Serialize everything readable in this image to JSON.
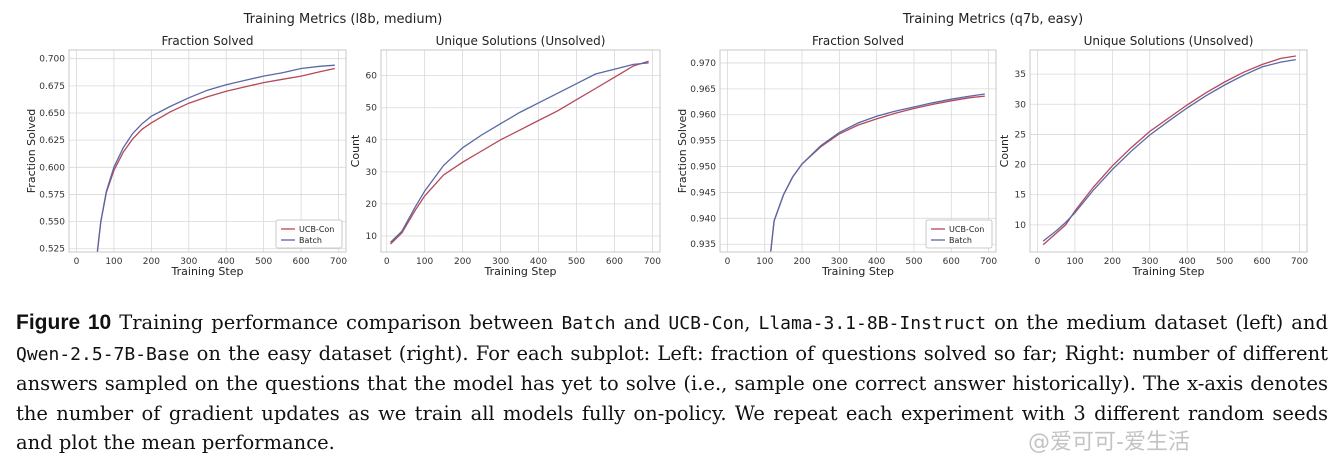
{
  "figure": {
    "suptitles": [
      "Training Metrics (l8b, medium)",
      "Training Metrics (q7b, easy)"
    ]
  },
  "chart_data": [
    {
      "type": "line",
      "title": "Fraction Solved",
      "xlabel": "Training Step",
      "ylabel": "Fraction Solved",
      "xlim": [
        -20,
        720
      ],
      "ylim": [
        0.522,
        0.708
      ],
      "xticks": [
        0,
        100,
        200,
        300,
        400,
        500,
        600,
        700
      ],
      "yticks": [
        0.525,
        0.55,
        0.575,
        0.6,
        0.625,
        0.65,
        0.675,
        0.7
      ],
      "ytick_labels": [
        "0.525",
        "0.550",
        "0.575",
        "0.600",
        "0.625",
        "0.650",
        "0.675",
        "0.700"
      ],
      "grid": true,
      "legend": "bottom-right",
      "x": [
        55,
        65,
        80,
        100,
        125,
        150,
        175,
        200,
        250,
        300,
        350,
        400,
        450,
        500,
        550,
        600,
        650,
        690
      ],
      "series": [
        {
          "name": "UCB-Con",
          "color": "#b5485a",
          "values": [
            0.52,
            0.55,
            0.577,
            0.597,
            0.614,
            0.626,
            0.635,
            0.641,
            0.651,
            0.659,
            0.665,
            0.67,
            0.674,
            0.678,
            0.681,
            0.684,
            0.688,
            0.691
          ]
        },
        {
          "name": "Batch",
          "color": "#5868a6",
          "values": [
            0.52,
            0.55,
            0.578,
            0.6,
            0.618,
            0.631,
            0.64,
            0.647,
            0.656,
            0.664,
            0.671,
            0.676,
            0.68,
            0.684,
            0.687,
            0.691,
            0.693,
            0.694
          ]
        }
      ]
    },
    {
      "type": "line",
      "title": "Unique Solutions (Unsolved)",
      "xlabel": "Training Step",
      "ylabel": "Count",
      "xlim": [
        -15,
        720
      ],
      "ylim": [
        5,
        68
      ],
      "xticks": [
        0,
        100,
        200,
        300,
        400,
        500,
        600,
        700
      ],
      "yticks": [
        10,
        20,
        30,
        40,
        50,
        60
      ],
      "ytick_labels": [
        "10",
        "20",
        "30",
        "40",
        "50",
        "60"
      ],
      "grid": true,
      "x": [
        10,
        40,
        75,
        100,
        150,
        200,
        250,
        300,
        350,
        400,
        450,
        500,
        550,
        600,
        650,
        690
      ],
      "series": [
        {
          "name": "UCB-Con",
          "color": "#b5485a",
          "values": [
            7.5,
            11,
            18,
            22.5,
            29,
            33,
            36.5,
            40,
            43,
            46,
            49,
            52.5,
            56,
            59.5,
            63,
            64.5
          ]
        },
        {
          "name": "Batch",
          "color": "#5868a6",
          "values": [
            8,
            11.5,
            19,
            24,
            32,
            37.5,
            41.5,
            45,
            48.5,
            51.5,
            54.5,
            57.5,
            60.5,
            62,
            63.5,
            64
          ]
        }
      ]
    },
    {
      "type": "line",
      "title": "Fraction Solved",
      "xlabel": "Training Step",
      "ylabel": "Fraction Solved",
      "xlim": [
        -20,
        720
      ],
      "ylim": [
        0.9335,
        0.9725
      ],
      "xticks": [
        0,
        100,
        200,
        300,
        400,
        500,
        600,
        700
      ],
      "yticks": [
        0.935,
        0.94,
        0.945,
        0.95,
        0.955,
        0.96,
        0.965,
        0.97
      ],
      "ytick_labels": [
        "0.935",
        "0.940",
        "0.945",
        "0.950",
        "0.955",
        "0.960",
        "0.965",
        "0.970"
      ],
      "grid": true,
      "legend": "bottom-right",
      "x": [
        115,
        125,
        150,
        175,
        200,
        250,
        300,
        350,
        400,
        450,
        500,
        550,
        600,
        650,
        690
      ],
      "series": [
        {
          "name": "UCB-Con",
          "color": "#b5485a",
          "values": [
            0.933,
            0.9395,
            0.9445,
            0.948,
            0.9505,
            0.9538,
            0.9563,
            0.958,
            0.9592,
            0.9603,
            0.9612,
            0.962,
            0.9627,
            0.9633,
            0.9636
          ]
        },
        {
          "name": "Batch",
          "color": "#5868a6",
          "values": [
            0.933,
            0.9395,
            0.9445,
            0.948,
            0.9505,
            0.954,
            0.9566,
            0.9584,
            0.9597,
            0.9607,
            0.9615,
            0.9623,
            0.963,
            0.9636,
            0.964
          ]
        }
      ]
    },
    {
      "type": "line",
      "title": "Unique Solutions (Unsolved)",
      "xlabel": "Training Step",
      "ylabel": "Count",
      "xlim": [
        -20,
        720
      ],
      "ylim": [
        5.5,
        39
      ],
      "xticks": [
        0,
        100,
        200,
        300,
        400,
        500,
        600,
        700
      ],
      "yticks": [
        10,
        15,
        20,
        25,
        30,
        35
      ],
      "ytick_labels": [
        "10",
        "15",
        "20",
        "25",
        "30",
        "35"
      ],
      "grid": true,
      "x": [
        15,
        50,
        75,
        100,
        150,
        200,
        250,
        300,
        350,
        400,
        450,
        500,
        550,
        600,
        650,
        690
      ],
      "series": [
        {
          "name": "UCB-Con",
          "color": "#b5485a",
          "values": [
            6.7,
            8.6,
            10,
            12.3,
            16.3,
            19.8,
            22.8,
            25.5,
            27.7,
            29.9,
            31.9,
            33.7,
            35.3,
            36.6,
            37.6,
            38
          ]
        },
        {
          "name": "Batch",
          "color": "#5868a6",
          "values": [
            7.3,
            9,
            10.4,
            12,
            15.8,
            19.2,
            22.2,
            24.9,
            27.2,
            29.4,
            31.4,
            33.2,
            34.8,
            36.2,
            37,
            37.4
          ]
        }
      ]
    }
  ],
  "caption": {
    "label": "Figure 10",
    "text_1": "Training performance comparison between ",
    "code_1": "Batch",
    "text_2": " and ",
    "code_2": "UCB-Con",
    "text_3": ", ",
    "code_3": "Llama-3.1-8B-Instruct",
    "text_4": " on the medium dataset (left) and ",
    "code_4": "Qwen-2.5-7B-Base",
    "text_5": " on the easy dataset (right). For each subplot: Left: fraction of questions solved so far; Right: number of different answers sampled on the questions that the model has yet to solve (i.e., sample one correct answer historically). The x-axis denotes the number of gradient updates as we train all models fully on-policy. We repeat each experiment with 3 different random seeds and plot the mean performance."
  },
  "watermark": "@爱可可-爱生活"
}
